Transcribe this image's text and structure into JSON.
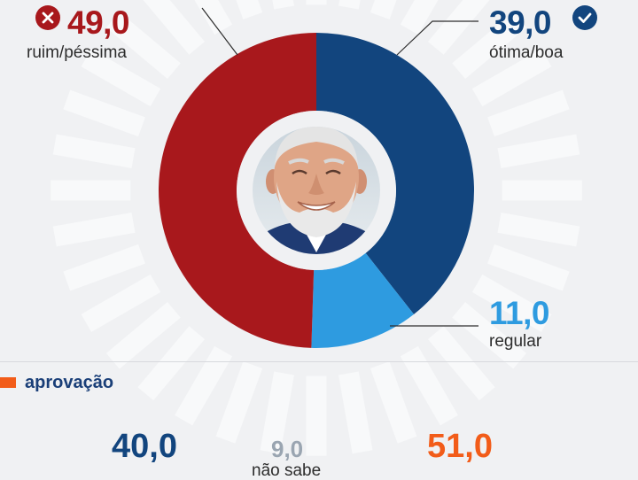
{
  "colors": {
    "ruim": "#a8181c",
    "otima": "#12457e",
    "regular": "#2e9be0",
    "approve": "#12457e",
    "nao_sabe": "#9aa5b1",
    "disapprove": "#f25c19",
    "accent": "#f25c19"
  },
  "chart_data": {
    "type": "pie",
    "style": "donut",
    "slices": [
      {
        "key": "otima",
        "label": "ótima/boa",
        "value": 39.0,
        "display": "39,0",
        "color": "#12457e"
      },
      {
        "key": "regular",
        "label": "regular",
        "value": 11.0,
        "display": "11,0",
        "color": "#2e9be0"
      },
      {
        "key": "ruim",
        "label": "ruim/péssima",
        "value": 49.0,
        "display": "49,0",
        "color": "#a8181c"
      }
    ],
    "center_image": "portrait-photo"
  },
  "icons": {
    "ruim": "x-circle-icon",
    "otima": "check-circle-icon"
  },
  "approval": {
    "title": "aprovação",
    "items": [
      {
        "key": "approve",
        "value": "40,0",
        "label": ""
      },
      {
        "key": "nao_sabe",
        "value": "9,0",
        "label": "não sabe"
      },
      {
        "key": "disapprove",
        "value": "51,0",
        "label": ""
      }
    ]
  }
}
